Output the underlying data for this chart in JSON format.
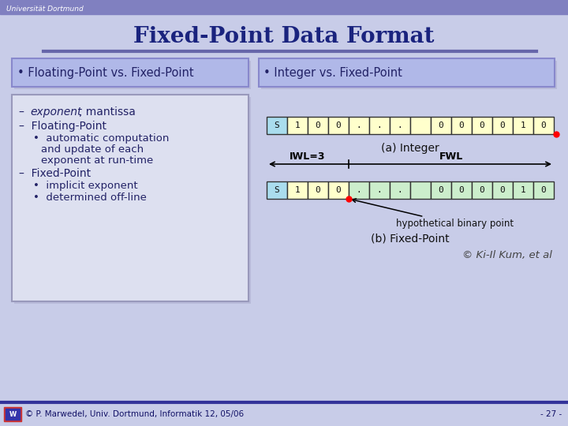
{
  "title": "Fixed-Point Data Format",
  "title_color": "#1a237e",
  "slide_bg": "#c8cce8",
  "header_bg": "#8080c0",
  "header_text": "Universität Dortmund",
  "header_text_color": "#ffffff",
  "divider_color": "#6666aa",
  "bullet_bg": "#b0b8e8",
  "bullet_border": "#8888cc",
  "sub_box_bg": "#dde0f0",
  "sub_box_border": "#9999bb",
  "row_a_vals": [
    "S",
    "1",
    "0",
    "0",
    ".",
    ".",
    ".",
    " ",
    "0",
    "0",
    "0",
    "0",
    "1",
    "0"
  ],
  "row_a_colors": [
    "#aaddee",
    "#ffffcc",
    "#ffffcc",
    "#ffffcc",
    "#ffffcc",
    "#ffffcc",
    "#ffffcc",
    "#ffffcc",
    "#ffffcc",
    "#ffffcc",
    "#ffffcc",
    "#ffffcc",
    "#ffffcc",
    "#ffffcc"
  ],
  "row_b_vals": [
    "S",
    "1",
    "0",
    "0",
    ".",
    ".",
    ".",
    " ",
    "0",
    "0",
    "0",
    "0",
    "1",
    "0"
  ],
  "row_b_colors": [
    "#aaddee",
    "#ffffcc",
    "#ffffcc",
    "#ffffcc",
    "#cceecc",
    "#cceecc",
    "#cceecc",
    "#cceecc",
    "#cceecc",
    "#cceecc",
    "#cceecc",
    "#cceecc",
    "#cceecc",
    "#cceecc"
  ],
  "text_dark": "#111111",
  "text_blue": "#222266",
  "footer_text": "© P. Marwedel, Univ. Dortmund, Informatik 12, 05/06",
  "footer_right": "- 27 -",
  "copyright_text": "© Ki-Il Kum, et al",
  "footer_bar_color": "#333399",
  "footer_bg": "#c8cce8"
}
